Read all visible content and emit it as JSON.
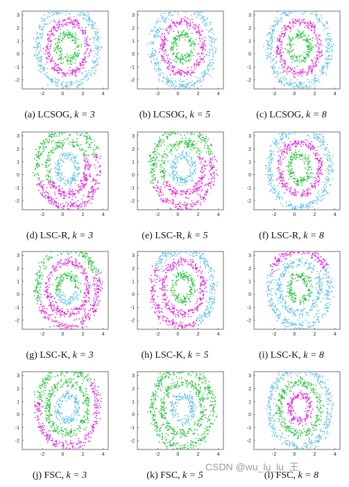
{
  "colors": {
    "cyan": "#5bc0eb",
    "magenta": "#e81ee0",
    "green": "#22c43a"
  },
  "watermark": "CSDN @wu_lu_lu_王",
  "chart_data": [
    {
      "type": "scatter",
      "caption_prefix": "(a)  LCSOG,",
      "k_text": "k = 3",
      "xlim": [
        -4,
        4.5
      ],
      "ylim": [
        -2.7,
        3.3
      ],
      "xticks": [
        -2,
        0,
        2,
        4
      ],
      "yticks": [
        -2,
        -1,
        0,
        1,
        2,
        3
      ],
      "rings": [
        {
          "radius": 3.0,
          "width": 0.4,
          "color": "cyan"
        },
        {
          "radius": 2.0,
          "width": 0.35,
          "color": "magenta"
        },
        {
          "radius": 1.0,
          "width": 0.35,
          "color": "green"
        }
      ]
    },
    {
      "type": "scatter",
      "caption_prefix": "(b)  LCSOG,",
      "k_text": "k = 5",
      "xlim": [
        -4,
        4.5
      ],
      "ylim": [
        -2.7,
        3.3
      ],
      "xticks": [
        -2,
        0,
        2,
        4
      ],
      "yticks": [
        -2,
        -1,
        0,
        1,
        2,
        3
      ],
      "rings": [
        {
          "radius": 3.0,
          "width": 0.4,
          "color": "cyan"
        },
        {
          "radius": 2.0,
          "width": 0.35,
          "color": "magenta"
        },
        {
          "radius": 1.0,
          "width": 0.35,
          "color": "green"
        }
      ]
    },
    {
      "type": "scatter",
      "caption_prefix": "(c)  LCSOG,",
      "k_text": "k = 8",
      "xlim": [
        -4,
        4.5
      ],
      "ylim": [
        -2.7,
        3.3
      ],
      "xticks": [
        -2,
        0,
        2,
        4
      ],
      "yticks": [
        -2,
        -1,
        0,
        1,
        2,
        3
      ],
      "rings": [
        {
          "radius": 3.0,
          "width": 0.4,
          "color": "cyan"
        },
        {
          "radius": 2.0,
          "width": 0.35,
          "color": "magenta"
        },
        {
          "radius": 1.0,
          "width": 0.35,
          "color": "green"
        }
      ]
    },
    {
      "type": "scatter",
      "caption_prefix": "(d)  LSC-R,",
      "k_text": "k = 3",
      "xlim": [
        -4,
        4.5
      ],
      "ylim": [
        -2.7,
        3.3
      ],
      "xticks": [
        -2,
        0,
        2,
        4
      ],
      "yticks": [
        -2,
        -1,
        0,
        1,
        2,
        3
      ],
      "rings": [
        {
          "radius": 3.0,
          "width": 0.4,
          "color": "split-3"
        },
        {
          "radius": 2.0,
          "width": 0.35,
          "color": "split-2"
        },
        {
          "radius": 1.0,
          "width": 0.35,
          "color": "cyan"
        }
      ]
    },
    {
      "type": "scatter",
      "caption_prefix": "(e)  LSC-R,",
      "k_text": "k = 5",
      "xlim": [
        -4,
        4.5
      ],
      "ylim": [
        -2.7,
        3.3
      ],
      "xticks": [
        -2,
        0,
        2,
        4
      ],
      "yticks": [
        -2,
        -1,
        0,
        1,
        2,
        3
      ],
      "rings": [
        {
          "radius": 3.0,
          "width": 0.4,
          "color": "split-3"
        },
        {
          "radius": 2.0,
          "width": 0.35,
          "color": "split-2"
        },
        {
          "radius": 1.0,
          "width": 0.35,
          "color": "cyan"
        }
      ]
    },
    {
      "type": "scatter",
      "caption_prefix": "(f)  LSC-R,",
      "k_text": "k = 8",
      "xlim": [
        -4,
        4.5
      ],
      "ylim": [
        -2.7,
        3.3
      ],
      "xticks": [
        -2,
        0,
        2,
        4
      ],
      "yticks": [
        -2,
        -1,
        0,
        1,
        2,
        3
      ],
      "rings": [
        {
          "radius": 3.0,
          "width": 0.4,
          "color": "cyan"
        },
        {
          "radius": 2.0,
          "width": 0.35,
          "color": "magenta"
        },
        {
          "radius": 1.0,
          "width": 0.35,
          "color": "green"
        }
      ]
    },
    {
      "type": "scatter",
      "caption_prefix": "(g)  LSC-K,",
      "k_text": "k = 3",
      "xlim": [
        -4,
        4.5
      ],
      "ylim": [
        -2.7,
        3.3
      ],
      "xticks": [
        -2,
        0,
        2,
        4
      ],
      "yticks": [
        -2,
        -1,
        0,
        1,
        2,
        3
      ],
      "rings": [
        {
          "radius": 3.0,
          "width": 0.4,
          "color": "split-3"
        },
        {
          "radius": 2.0,
          "width": 0.35,
          "color": "magenta"
        },
        {
          "radius": 1.0,
          "width": 0.35,
          "color": "split-1"
        }
      ]
    },
    {
      "type": "scatter",
      "caption_prefix": "(h)  LSC-K,",
      "k_text": "k = 5",
      "xlim": [
        -4,
        4.5
      ],
      "ylim": [
        -2.7,
        3.3
      ],
      "xticks": [
        -2,
        0,
        2,
        4
      ],
      "yticks": [
        -2,
        -1,
        0,
        1,
        2,
        3
      ],
      "rings": [
        {
          "radius": 3.0,
          "width": 0.4,
          "color": "split-3b"
        },
        {
          "radius": 2.0,
          "width": 0.35,
          "color": "magenta"
        },
        {
          "radius": 1.0,
          "width": 0.35,
          "color": "green"
        }
      ]
    },
    {
      "type": "scatter",
      "caption_prefix": "(i)  LSC-K,",
      "k_text": "k = 8",
      "xlim": [
        -4,
        4.5
      ],
      "ylim": [
        -2.7,
        3.3
      ],
      "xticks": [
        -2,
        0,
        2,
        4
      ],
      "yticks": [
        -2,
        -1,
        0,
        1,
        2,
        3
      ],
      "rings": [
        {
          "radius": 3.0,
          "width": 0.4,
          "color": "split-3c"
        },
        {
          "radius": 2.0,
          "width": 0.35,
          "color": "cyan"
        },
        {
          "radius": 1.0,
          "width": 0.35,
          "color": "green"
        }
      ]
    },
    {
      "type": "scatter",
      "caption_prefix": "(j)  FSC,",
      "k_text": "k = 3",
      "xlim": [
        -4,
        4.5
      ],
      "ylim": [
        -2.7,
        3.3
      ],
      "xticks": [
        -2,
        0,
        2,
        4
      ],
      "yticks": [
        -2,
        -1,
        0,
        1,
        2,
        3
      ],
      "rings": [
        {
          "radius": 3.0,
          "width": 0.4,
          "color": "split-3d"
        },
        {
          "radius": 2.0,
          "width": 0.35,
          "color": "green"
        },
        {
          "radius": 1.0,
          "width": 0.35,
          "color": "cyan"
        }
      ]
    },
    {
      "type": "scatter",
      "caption_prefix": "(k)  FSC,",
      "k_text": "k = 5",
      "xlim": [
        -4,
        4.5
      ],
      "ylim": [
        -2.7,
        3.3
      ],
      "xticks": [
        -2,
        0,
        2,
        4
      ],
      "yticks": [
        -2,
        -1,
        0,
        1,
        2,
        3
      ],
      "rings": [
        {
          "radius": 3.0,
          "width": 0.4,
          "color": "green"
        },
        {
          "radius": 2.0,
          "width": 0.35,
          "color": "green"
        },
        {
          "radius": 1.0,
          "width": 0.35,
          "color": "cyan"
        }
      ]
    },
    {
      "type": "scatter",
      "caption_prefix": "(l)  FSC,",
      "k_text": "k = 8",
      "xlim": [
        -4,
        4.5
      ],
      "ylim": [
        -2.7,
        3.3
      ],
      "xticks": [
        -2,
        0,
        2,
        4
      ],
      "yticks": [
        -2,
        -1,
        0,
        1,
        2,
        3
      ],
      "rings": [
        {
          "radius": 3.0,
          "width": 0.4,
          "color": "cyan"
        },
        {
          "radius": 2.0,
          "width": 0.35,
          "color": "green"
        },
        {
          "radius": 1.0,
          "width": 0.35,
          "color": "magenta"
        }
      ]
    }
  ]
}
